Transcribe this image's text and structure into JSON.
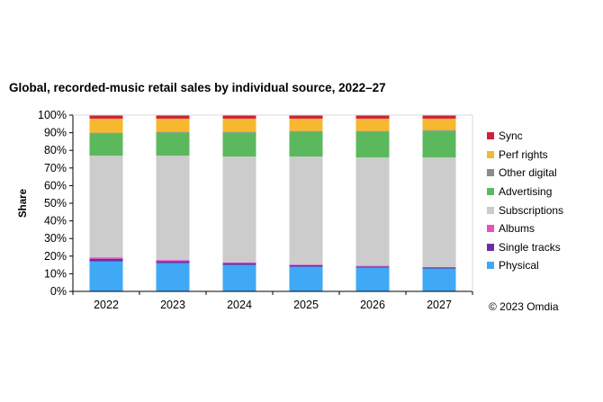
{
  "chart_data": {
    "type": "bar",
    "stacked": true,
    "title": "Global, recorded-music retail sales by individual source, 2022–27",
    "xlabel": "",
    "ylabel": "Share",
    "ylim": [
      0,
      100
    ],
    "yticks": [
      "0%",
      "10%",
      "20%",
      "30%",
      "40%",
      "50%",
      "60%",
      "70%",
      "80%",
      "90%",
      "100%"
    ],
    "categories": [
      "2022",
      "2023",
      "2024",
      "2025",
      "2026",
      "2027"
    ],
    "series": [
      {
        "name": "Physical",
        "color": "#3fa9f5",
        "values": [
          17,
          16,
          15,
          14,
          13.5,
          13
        ]
      },
      {
        "name": "Single tracks",
        "color": "#6a2fa0",
        "values": [
          1.5,
          1.2,
          1,
          0.8,
          0.6,
          0.5
        ]
      },
      {
        "name": "Albums",
        "color": "#e64fc0",
        "values": [
          0.8,
          0.6,
          0.5,
          0.4,
          0.4,
          0.3
        ]
      },
      {
        "name": "Subscriptions",
        "color": "#cccccc",
        "values": [
          57.7,
          59.2,
          60,
          61.3,
          61.5,
          62.2
        ]
      },
      {
        "name": "Advertising",
        "color": "#5cb85c",
        "values": [
          12.5,
          13,
          13.5,
          14,
          14.5,
          15
        ]
      },
      {
        "name": "Other digital",
        "color": "#8c8c8c",
        "values": [
          0.5,
          0.5,
          0.5,
          0.5,
          0.5,
          0.5
        ]
      },
      {
        "name": "Perf rights",
        "color": "#f5b82e",
        "values": [
          8,
          7.5,
          7.5,
          7,
          7,
          6.5
        ]
      },
      {
        "name": "Sync",
        "color": "#d0203a",
        "values": [
          2,
          2,
          2,
          2,
          2,
          2
        ]
      }
    ],
    "legend_order": [
      "Sync",
      "Perf rights",
      "Other digital",
      "Advertising",
      "Subscriptions",
      "Albums",
      "Single tracks",
      "Physical"
    ],
    "legend_position": "right",
    "grid": false
  },
  "copyright": "© 2023 Omdia"
}
